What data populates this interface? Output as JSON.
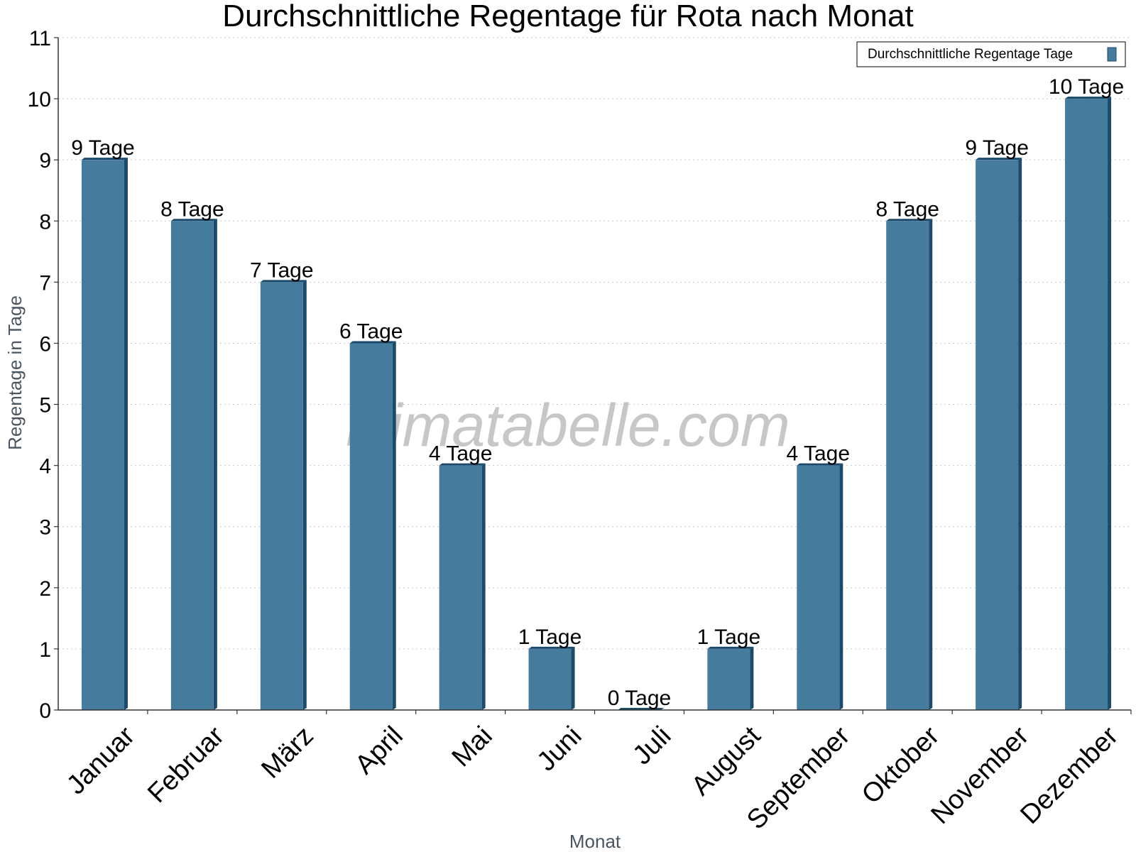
{
  "chart_data": {
    "type": "bar",
    "title": "Durchschnittliche Regentage für Rota nach Monat",
    "xlabel": "Monat",
    "ylabel": "Regentage in Tage",
    "ylim": [
      0,
      11
    ],
    "yticks": [
      0,
      1,
      2,
      3,
      4,
      5,
      6,
      7,
      8,
      9,
      10,
      11
    ],
    "grid": true,
    "legend_position": "top-right",
    "categories": [
      "Januar",
      "Februar",
      "März",
      "April",
      "Mai",
      "Juni",
      "Juli",
      "August",
      "September",
      "Oktober",
      "November",
      "Dezember"
    ],
    "series": [
      {
        "name": "Durchschnittliche Regentage Tage",
        "values": [
          9,
          8,
          7,
          6,
          4,
          1,
          0,
          1,
          4,
          8,
          9,
          10
        ],
        "data_labels": [
          "9 Tage",
          "8 Tage",
          "7 Tage",
          "6 Tage",
          "4 Tage",
          "1 Tage",
          "0 Tage",
          "1 Tage",
          "4 Tage",
          "8 Tage",
          "9 Tage",
          "10 Tage"
        ],
        "color": "#457b9d",
        "shade_color": "#1b4a6a"
      }
    ]
  },
  "watermark": "klimatabelle.com",
  "colors": {
    "grid": "#c8c8c8",
    "axis": "#333333"
  }
}
